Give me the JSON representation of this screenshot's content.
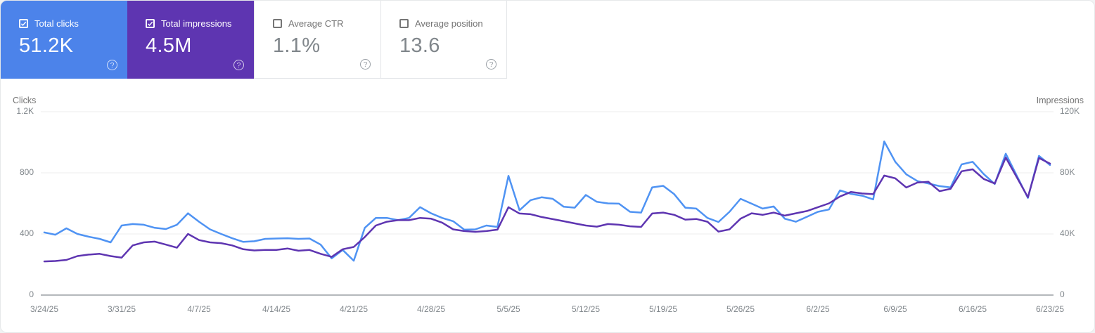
{
  "cards": [
    {
      "label": "Total clicks",
      "value": "51.2K",
      "checked": true,
      "bg": "#4c83ea",
      "help": "?"
    },
    {
      "label": "Total impressions",
      "value": "4.5M",
      "checked": true,
      "bg": "#5e35b1",
      "help": "?"
    },
    {
      "label": "Average CTR",
      "value": "1.1%",
      "checked": false,
      "bg": "",
      "help": "?"
    },
    {
      "label": "Average position",
      "value": "13.6",
      "checked": false,
      "bg": "",
      "help": "?"
    }
  ],
  "chart_data": {
    "type": "line",
    "frequency": "daily",
    "x_tick_labels": [
      "3/24/25",
      "3/31/25",
      "4/7/25",
      "4/14/25",
      "4/21/25",
      "4/28/25",
      "5/5/25",
      "5/12/25",
      "5/19/25",
      "5/26/25",
      "6/2/25",
      "6/9/25",
      "6/16/25",
      "6/23/25"
    ],
    "left_axis": {
      "label": "Clicks",
      "ticks": [
        "0",
        "400",
        "800",
        "1.2K"
      ],
      "max": 1200
    },
    "right_axis": {
      "label": "Impressions",
      "ticks": [
        "0",
        "40K",
        "80K",
        "120K"
      ],
      "max": 120000
    },
    "grid": "horizontal",
    "series": [
      {
        "name": "Clicks",
        "axis": "left",
        "color": "#4f93f3",
        "values": [
          410,
          395,
          437,
          400,
          382,
          368,
          345,
          455,
          465,
          460,
          440,
          432,
          460,
          535,
          480,
          430,
          400,
          372,
          348,
          352,
          368,
          370,
          372,
          368,
          370,
          330,
          240,
          295,
          225,
          440,
          505,
          505,
          490,
          505,
          575,
          535,
          505,
          483,
          428,
          430,
          455,
          446,
          780,
          555,
          621,
          640,
          630,
          578,
          572,
          655,
          610,
          600,
          598,
          545,
          540,
          705,
          715,
          660,
          572,
          566,
          505,
          478,
          545,
          630,
          598,
          566,
          580,
          500,
          480,
          512,
          545,
          560,
          685,
          662,
          650,
          626,
          1005,
          872,
          790,
          746,
          730,
          713,
          705,
          855,
          872,
          792,
          727,
          925,
          780,
          636,
          911,
          851
        ]
      },
      {
        "name": "Impressions",
        "axis": "right",
        "color": "#5e35b1",
        "values": [
          22000,
          22300,
          23000,
          25500,
          26500,
          27000,
          25500,
          24500,
          32500,
          34500,
          35000,
          33000,
          31000,
          40000,
          36000,
          34500,
          34000,
          32500,
          30000,
          29200,
          29500,
          29500,
          30500,
          29000,
          29500,
          27000,
          25000,
          30000,
          31500,
          38000,
          45500,
          48000,
          49000,
          49000,
          50500,
          50000,
          47400,
          43000,
          41900,
          41400,
          41900,
          42800,
          57500,
          53400,
          52900,
          51100,
          49700,
          48300,
          46900,
          45500,
          44800,
          46500,
          46000,
          45000,
          44600,
          53400,
          54000,
          52500,
          49400,
          49800,
          48000,
          41500,
          43000,
          50000,
          53500,
          52500,
          54000,
          52000,
          53500,
          55000,
          57500,
          60000,
          64500,
          67500,
          66500,
          66000,
          78200,
          76400,
          70400,
          73600,
          74100,
          68000,
          69500,
          81000,
          82300,
          76000,
          73000,
          90000,
          77000,
          64000,
          89700,
          86000
        ]
      }
    ]
  },
  "colors": {
    "clicks_card": "#4c83ea",
    "impressions_card": "#5e35b1",
    "clicks_line": "#4f93f3",
    "impressions_line": "#5e35b1",
    "gridline": "#ececec",
    "baseline": "#b4b8bb"
  }
}
